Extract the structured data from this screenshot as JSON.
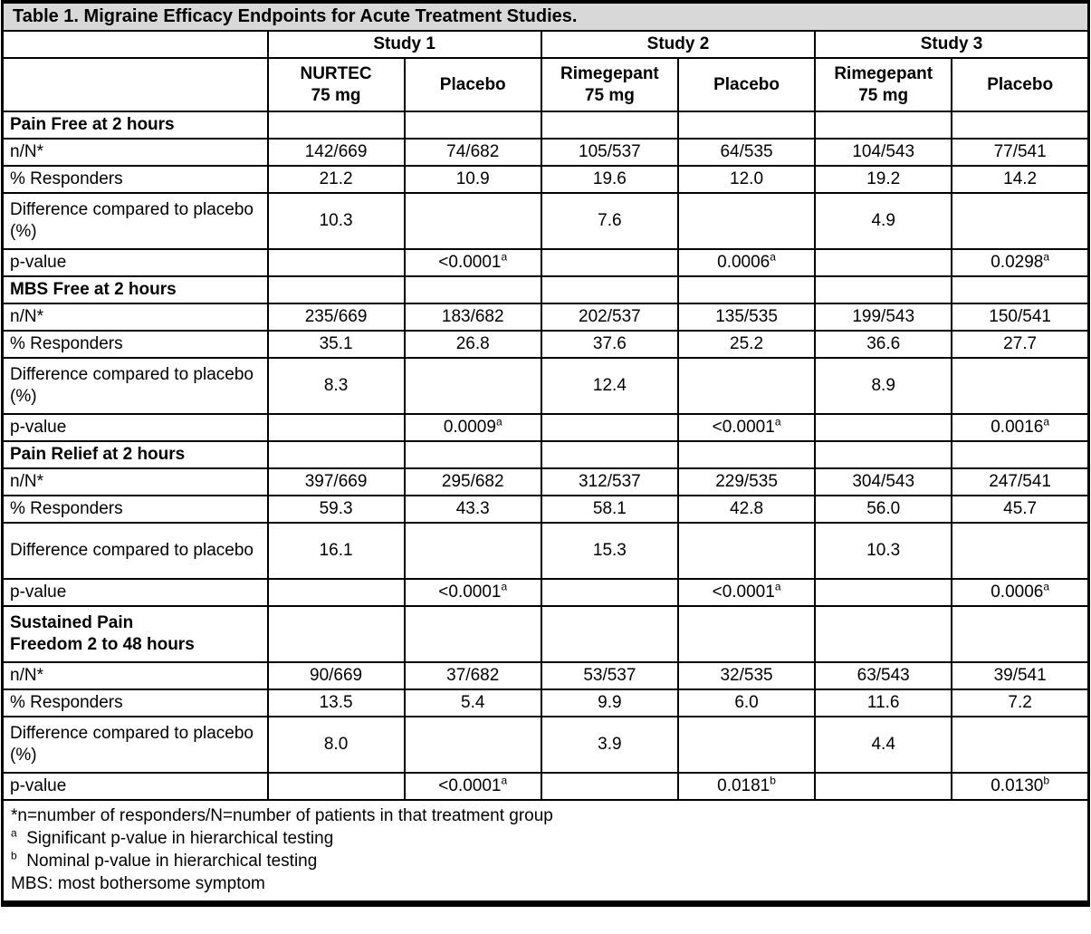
{
  "colors": {
    "title_bg": "#d8d8d8",
    "border": "#000000",
    "text": "#000000",
    "background": "#ffffff"
  },
  "table": {
    "title": "Table 1. Migraine Efficacy Endpoints for Acute Treatment Studies.",
    "studies": [
      {
        "label": "Study 1",
        "arms": [
          "NURTEC\n75 mg",
          "Placebo"
        ]
      },
      {
        "label": "Study 2",
        "arms": [
          "Rimegepant\n75 mg",
          "Placebo"
        ]
      },
      {
        "label": "Study 3",
        "arms": [
          "Rimegepant\n75 mg",
          "Placebo"
        ]
      }
    ],
    "sections": [
      {
        "title": "Pain Free at 2 hours",
        "rows": [
          {
            "label": "n/N*",
            "values": [
              "142/669",
              "74/682",
              "105/537",
              "64/535",
              "104/543",
              "77/541"
            ]
          },
          {
            "label": "% Responders",
            "values": [
              "21.2",
              "10.9",
              "19.6",
              "12.0",
              "19.2",
              "14.2"
            ]
          },
          {
            "label": "Difference compared to placebo (%)",
            "values": [
              "10.3",
              "",
              "7.6",
              "",
              "4.9",
              ""
            ]
          },
          {
            "label": "p-value",
            "values": [
              "",
              {
                "v": "<0.0001",
                "sup": "a"
              },
              "",
              {
                "v": "0.0006",
                "sup": "a"
              },
              "",
              {
                "v": "0.0298",
                "sup": "a"
              }
            ]
          }
        ]
      },
      {
        "title": "MBS Free at 2 hours",
        "rows": [
          {
            "label": "n/N*",
            "values": [
              "235/669",
              "183/682",
              "202/537",
              "135/535",
              "199/543",
              "150/541"
            ]
          },
          {
            "label": "% Responders",
            "values": [
              "35.1",
              "26.8",
              "37.6",
              "25.2",
              "36.6",
              "27.7"
            ]
          },
          {
            "label": "Difference compared to placebo (%)",
            "values": [
              "8.3",
              "",
              "12.4",
              "",
              "8.9",
              ""
            ]
          },
          {
            "label": "p-value",
            "values": [
              "",
              {
                "v": "0.0009",
                "sup": "a"
              },
              "",
              {
                "v": "<0.0001",
                "sup": "a"
              },
              "",
              {
                "v": "0.0016",
                "sup": "a"
              }
            ]
          }
        ]
      },
      {
        "title": "Pain Relief at 2 hours",
        "rows": [
          {
            "label": "n/N*",
            "values": [
              "397/669",
              "295/682",
              "312/537",
              "229/535",
              "304/543",
              "247/541"
            ]
          },
          {
            "label": "% Responders",
            "values": [
              "59.3",
              "43.3",
              "58.1",
              "42.8",
              "56.0",
              "45.7"
            ]
          },
          {
            "label": "Difference compared to placebo",
            "values": [
              "16.1",
              "",
              "15.3",
              "",
              "10.3",
              ""
            ]
          },
          {
            "label": "p-value",
            "values": [
              "",
              {
                "v": "<0.0001",
                "sup": "a"
              },
              "",
              {
                "v": "<0.0001",
                "sup": "a"
              },
              "",
              {
                "v": "0.0006",
                "sup": "a"
              }
            ]
          }
        ]
      },
      {
        "title": "Sustained Pain\nFreedom 2 to 48 hours",
        "rows": [
          {
            "label": "n/N*",
            "values": [
              "90/669",
              "37/682",
              "53/537",
              "32/535",
              "63/543",
              "39/541"
            ]
          },
          {
            "label": "% Responders",
            "values": [
              "13.5",
              "5.4",
              "9.9",
              "6.0",
              "11.6",
              "7.2"
            ]
          },
          {
            "label": "Difference compared to placebo (%)",
            "values": [
              "8.0",
              "",
              "3.9",
              "",
              "4.4",
              ""
            ]
          },
          {
            "label": "p-value",
            "values": [
              "",
              {
                "v": "<0.0001",
                "sup": "a"
              },
              "",
              {
                "v": "0.0181",
                "sup": "b"
              },
              "",
              {
                "v": "0.0130",
                "sup": "b"
              }
            ]
          }
        ]
      }
    ]
  },
  "footnotes": {
    "asterisk": "*n=number of responders/N=number of patients in that treatment group",
    "a_marker": "a",
    "a_text": "Significant p-value in hierarchical testing",
    "b_marker": "b",
    "b_text": "Nominal p-value in hierarchical testing",
    "mbs": "MBS: most bothersome symptom"
  }
}
